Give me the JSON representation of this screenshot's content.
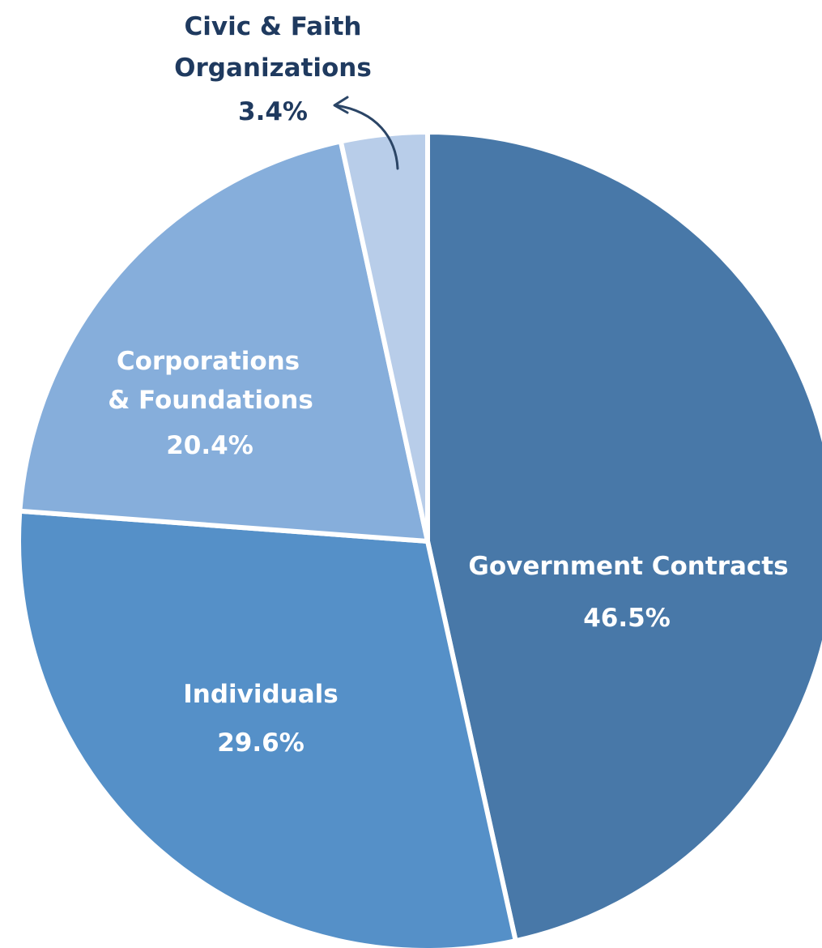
{
  "chart_data": {
    "type": "pie",
    "start": "12 o'clock, clockwise",
    "slices": [
      {
        "label_lines": [
          "Government Contracts"
        ],
        "value": 46.5,
        "value_label": "46.5%",
        "color": "#4878a8"
      },
      {
        "label_lines": [
          "Individuals"
        ],
        "value": 29.6,
        "value_label": "29.6%",
        "color": "#5590c8"
      },
      {
        "label_lines": [
          "Corporations",
          "& Foundations"
        ],
        "value": 20.4,
        "value_label": "20.4%",
        "color": "#86aedb"
      },
      {
        "label_lines": [
          "Civic & Faith",
          "Organizations"
        ],
        "value": 3.4,
        "value_label": "3.4%",
        "color": "#b8cde9",
        "label_outside": true
      }
    ]
  }
}
